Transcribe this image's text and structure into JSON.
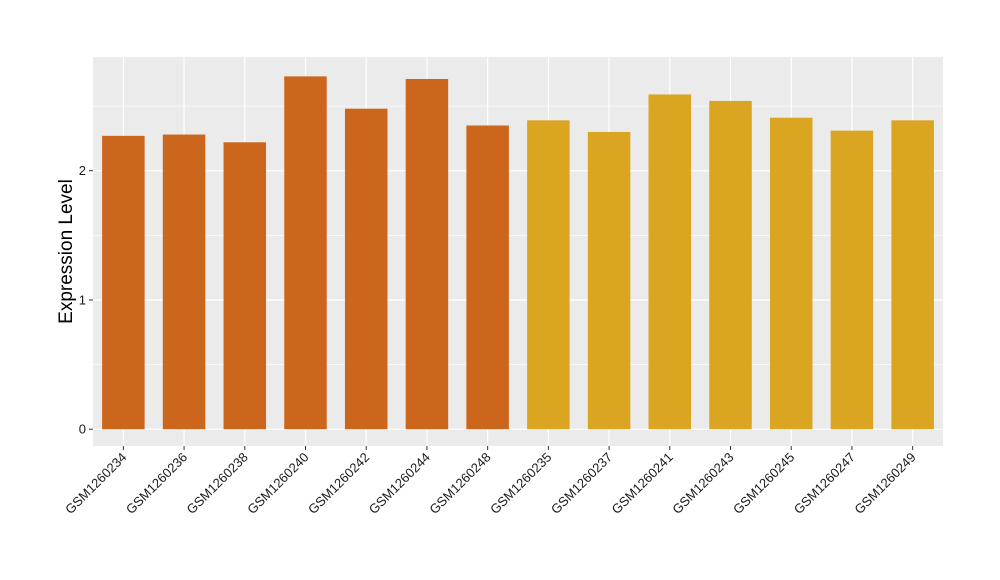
{
  "chart_data": {
    "type": "bar",
    "title": "",
    "xlabel": "",
    "ylabel": "Expression Level",
    "ylim": [
      -0.13,
      2.88
    ],
    "yticks": [
      0,
      1,
      2
    ],
    "grid": true,
    "legend": "none",
    "categories": [
      "GSM1260234",
      "GSM1260236",
      "GSM1260238",
      "GSM1260240",
      "GSM1260242",
      "GSM1260244",
      "GSM1260248",
      "GSM1260235",
      "GSM1260237",
      "GSM1260241",
      "GSM1260243",
      "GSM1260245",
      "GSM1260247",
      "GSM1260249"
    ],
    "values": [
      2.27,
      2.28,
      2.22,
      2.73,
      2.48,
      2.71,
      2.35,
      2.39,
      2.3,
      2.59,
      2.54,
      2.41,
      2.31,
      2.39
    ],
    "bar_colors": [
      "#CD661D",
      "#CD661D",
      "#CD661D",
      "#CD661D",
      "#CD661D",
      "#CD661D",
      "#CD661D",
      "#DAA520",
      "#DAA520",
      "#DAA520",
      "#DAA520",
      "#DAA520",
      "#DAA520",
      "#DAA520"
    ],
    "panel_background": "#EBEBEB",
    "grid_color": "#FFFFFF"
  }
}
